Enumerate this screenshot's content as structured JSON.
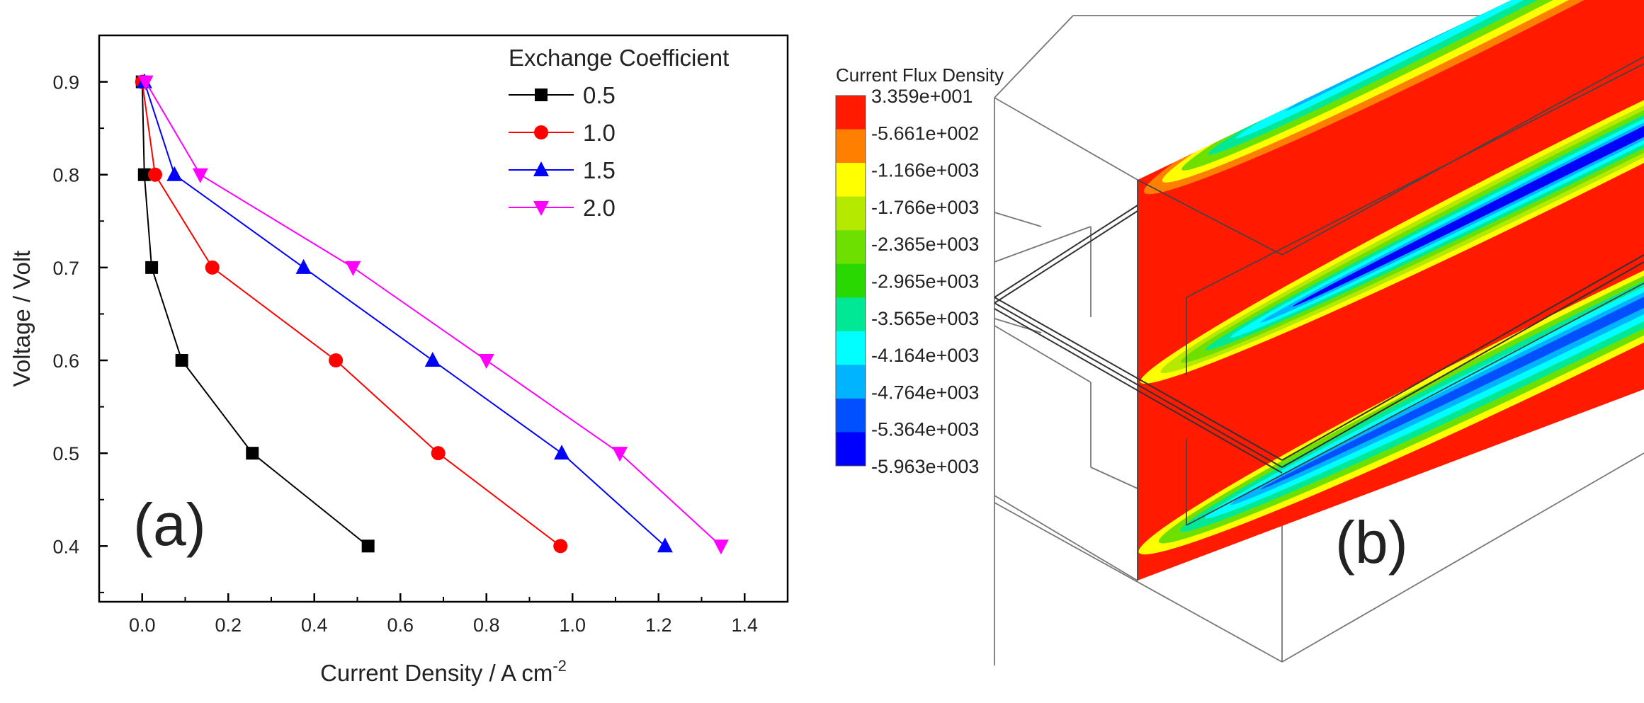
{
  "chart_data": [
    {
      "panel": "(a)",
      "type": "line",
      "xlabel": "Current Density / A cm",
      "xlabel_sup": "-2",
      "ylabel": "Voltage / Volt",
      "xlim": [
        -0.1,
        1.5
      ],
      "ylim": [
        0.34,
        0.95
      ],
      "xticks": [
        "0.0",
        "0.2",
        "0.4",
        "0.6",
        "0.8",
        "1.0",
        "1.2",
        "1.4"
      ],
      "yticks": [
        "0.4",
        "0.5",
        "0.6",
        "0.7",
        "0.8",
        "0.9"
      ],
      "legend_title": "Exchange Coefficient",
      "legend_position": "top-right",
      "series": [
        {
          "name": "0.5",
          "color": "#000000",
          "marker": "square",
          "x": [
            0.0,
            0.005,
            0.022,
            0.092,
            0.256,
            0.525
          ],
          "y": [
            0.9,
            0.8,
            0.7,
            0.6,
            0.5,
            0.4
          ]
        },
        {
          "name": "1.0",
          "color": "#ff0000",
          "marker": "circle",
          "x": [
            0.0,
            0.03,
            0.163,
            0.45,
            0.688,
            0.972
          ],
          "y": [
            0.9,
            0.8,
            0.7,
            0.6,
            0.5,
            0.4
          ]
        },
        {
          "name": "1.5",
          "color": "#0000ff",
          "marker": "triangle-up",
          "x": [
            0.005,
            0.075,
            0.375,
            0.675,
            0.975,
            1.215
          ],
          "y": [
            0.9,
            0.8,
            0.7,
            0.6,
            0.5,
            0.4
          ]
        },
        {
          "name": "2.0",
          "color": "#ff00ff",
          "marker": "triangle-down",
          "x": [
            0.008,
            0.135,
            0.49,
            0.8,
            1.11,
            1.345
          ],
          "y": [
            0.9,
            0.8,
            0.7,
            0.6,
            0.5,
            0.4
          ]
        }
      ]
    },
    {
      "panel": "(b)",
      "type": "heatmap",
      "colorbar_title": "Current Flux Density",
      "colorbar_labels": [
        "3.359e+001",
        "-5.661e+002",
        "-1.166e+003",
        "-1.766e+003",
        "-2.365e+003",
        "-2.965e+003",
        "-3.565e+003",
        "-4.164e+003",
        "-4.764e+003",
        "-5.364e+003",
        "-5.963e+003"
      ],
      "colorbar_colors": [
        "#ff1a00",
        "#ff7f00",
        "#ffff00",
        "#b5ea00",
        "#6ee000",
        "#28d800",
        "#00e896",
        "#00ffff",
        "#00b4ff",
        "#0050ff",
        "#0000ff"
      ]
    }
  ]
}
